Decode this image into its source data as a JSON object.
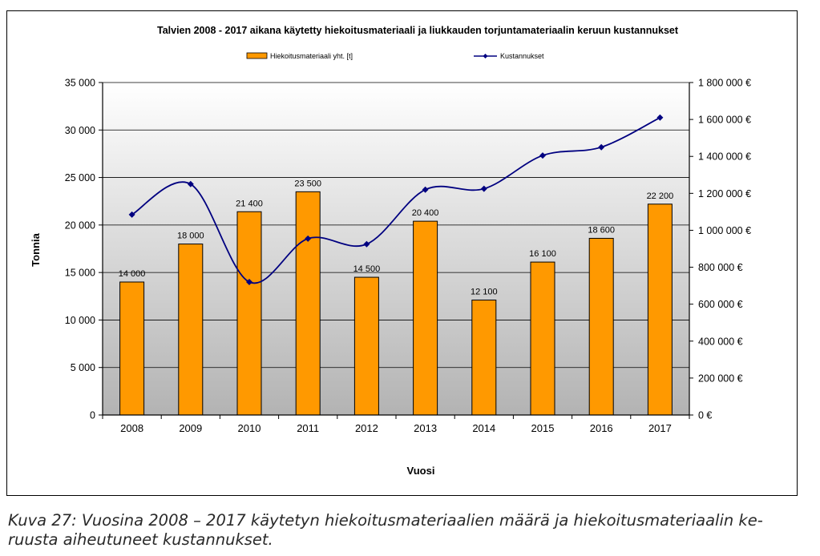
{
  "chart_data": {
    "type": "bar",
    "title": "Talvien 2008 - 2017 aikana käytetty hiekoitusmateriaali ja liukkauden torjuntamateriaalin keruun kustannukset",
    "xlabel": "Vuosi",
    "ylabel": "Tonnia",
    "categories": [
      "2008",
      "2009",
      "2010",
      "2011",
      "2012",
      "2013",
      "2014",
      "2015",
      "2016",
      "2017"
    ],
    "ylim": [
      0,
      35000
    ],
    "y_ticks": [
      "0",
      "5 000",
      "10 000",
      "15 000",
      "20 000",
      "25 000",
      "30 000",
      "35 000"
    ],
    "y2lim": [
      0,
      1800000
    ],
    "y2_ticks": [
      "0 €",
      "200 000 €",
      "400 000 €",
      "600 000 €",
      "800 000 €",
      "1 000 000 €",
      "1 200 000 €",
      "1 400 000 €",
      "1 600 000 €",
      "1 800 000 €"
    ],
    "grid": true,
    "legend_position": "top",
    "series": [
      {
        "name": "Hiekoitusmateriaali yht. [t]",
        "type": "bar",
        "axis": "left",
        "color": "#FF9900",
        "values": [
          14000,
          18000,
          21400,
          23500,
          14500,
          20400,
          12100,
          16100,
          18600,
          22200
        ],
        "data_labels": [
          "14 000",
          "18 000",
          "21 400",
          "23 500",
          "14 500",
          "20 400",
          "12 100",
          "16 100",
          "18 600",
          "22 200"
        ]
      },
      {
        "name": "Kustannukset",
        "type": "line",
        "axis": "right",
        "color": "#000080",
        "values": [
          1085000,
          1250000,
          720000,
          955000,
          925000,
          1220000,
          1225000,
          1405000,
          1450000,
          1610000
        ]
      }
    ]
  },
  "caption": {
    "line1": "Kuva 27: Vuosina 2008 – 2017 käytetyn hiekoitusmateriaalien määrä ja hiekoitusmateriaalin ke-",
    "line2": "ruusta aiheutuneet kustannukset."
  }
}
